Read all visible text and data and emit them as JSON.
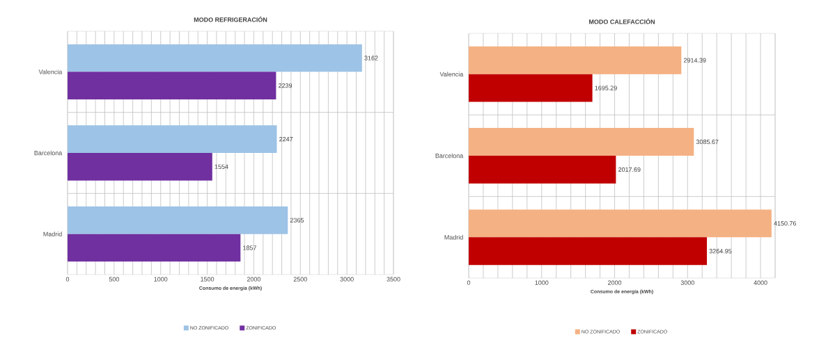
{
  "chart_data": [
    {
      "type": "bar",
      "orientation": "horizontal",
      "title": "MODO REFRIGERACIÓN",
      "xlabel": "Consumo de energía (kWh)",
      "categories": [
        "Valencia",
        "Barcelona",
        "Madrid"
      ],
      "series": [
        {
          "name": "NO ZONIFICADO",
          "color": "#9dc3e6",
          "values": [
            3162,
            2247,
            2365
          ]
        },
        {
          "name": "ZONIFICADO",
          "color": "#7030a0",
          "values": [
            2239,
            1554,
            1857
          ]
        }
      ],
      "xlim": [
        0,
        3500
      ],
      "xticks": [
        0,
        {
          "value": 100,
          "label": null
        },
        {
          "value": 200,
          "label": null
        },
        {
          "value": 300,
          "label": null
        },
        {
          "value": 400,
          "label": null
        },
        500,
        {
          "value": 600,
          "label": null
        },
        {
          "value": 700,
          "label": null
        },
        {
          "value": 800,
          "label": null
        },
        {
          "value": 900,
          "label": null
        },
        1000,
        {
          "value": 1100,
          "label": null
        },
        {
          "value": 1200,
          "label": null
        },
        {
          "value": 1300,
          "label": null
        },
        {
          "value": 1400,
          "label": null
        },
        1500,
        {
          "value": 1600,
          "label": null
        },
        {
          "value": 1700,
          "label": null
        },
        {
          "value": 1800,
          "label": null
        },
        {
          "value": 1900,
          "label": null
        },
        2000,
        {
          "value": 2100,
          "label": null
        },
        {
          "value": 2200,
          "label": null
        },
        {
          "value": 2300,
          "label": null
        },
        {
          "value": 2400,
          "label": null
        },
        2500,
        {
          "value": 2600,
          "label": null
        },
        {
          "value": 2700,
          "label": null
        },
        {
          "value": 2800,
          "label": null
        },
        {
          "value": 2900,
          "label": null
        },
        3000,
        {
          "value": 3100,
          "label": null
        },
        {
          "value": 3200,
          "label": null
        },
        {
          "value": 3300,
          "label": null
        },
        {
          "value": 3400,
          "label": null
        },
        3500
      ],
      "grid": true,
      "legend": "bottom",
      "data_labels": true
    },
    {
      "type": "bar",
      "orientation": "horizontal",
      "title": "MODO CALEFACCIÓN",
      "xlabel": "Consumo de energía (kWh)",
      "categories": [
        "Valencia",
        "Barcelona",
        "Madrid"
      ],
      "series": [
        {
          "name": "NO ZONIFICADO",
          "color": "#f4b183",
          "values": [
            2914.39,
            3085.67,
            4150.76
          ]
        },
        {
          "name": "ZONIFICADO",
          "color": "#c00000",
          "values": [
            1695.29,
            2017.69,
            3264.95
          ]
        }
      ],
      "xlim": [
        0,
        4200
      ],
      "xticks": [
        0,
        {
          "value": 200,
          "label": null
        },
        {
          "value": 400,
          "label": null
        },
        {
          "value": 600,
          "label": null
        },
        {
          "value": 800,
          "label": null
        },
        1000,
        {
          "value": 1200,
          "label": null
        },
        {
          "value": 1400,
          "label": null
        },
        {
          "value": 1600,
          "label": null
        },
        {
          "value": 1800,
          "label": null
        },
        2000,
        {
          "value": 2200,
          "label": null
        },
        {
          "value": 2400,
          "label": null
        },
        {
          "value": 2600,
          "label": null
        },
        {
          "value": 2800,
          "label": null
        },
        3000,
        {
          "value": 3200,
          "label": null
        },
        {
          "value": 3400,
          "label": null
        },
        {
          "value": 3600,
          "label": null
        },
        {
          "value": 3800,
          "label": null
        },
        4000,
        {
          "value": 4200,
          "label": null
        }
      ],
      "grid": true,
      "legend": "bottom",
      "data_labels": true
    }
  ]
}
